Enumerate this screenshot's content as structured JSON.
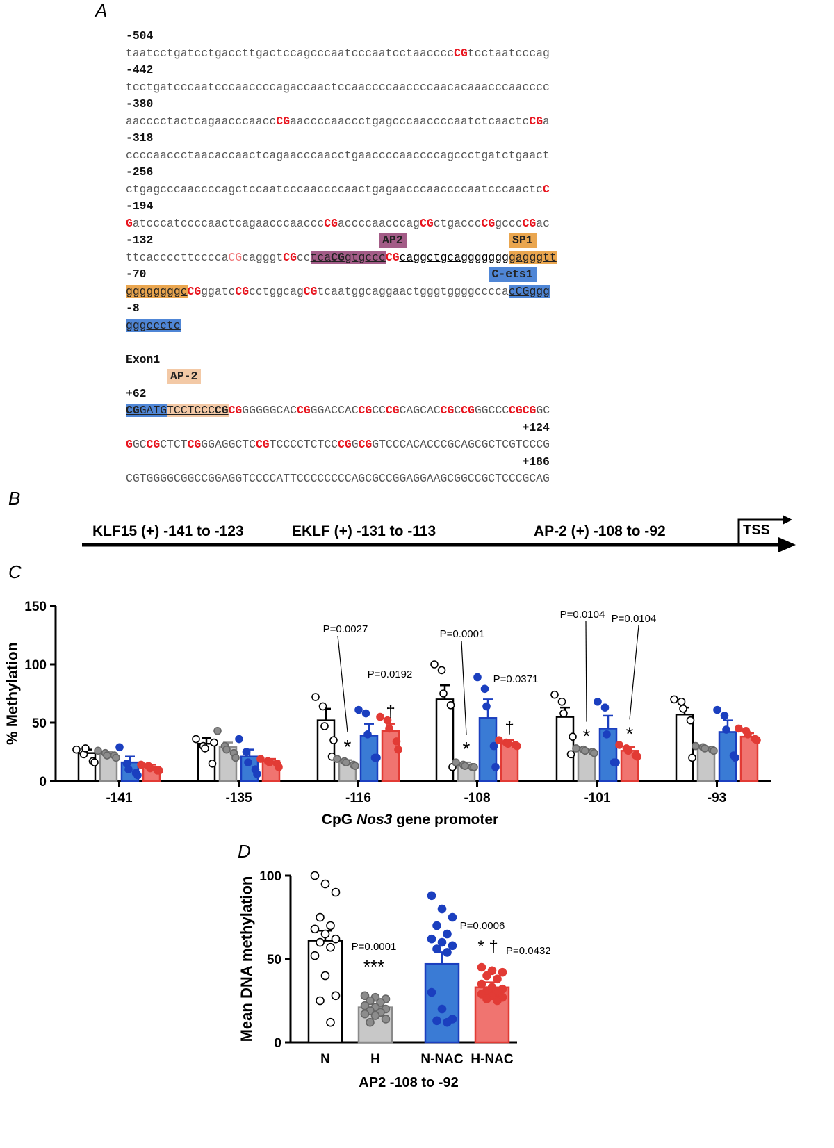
{
  "panels": {
    "a": "A",
    "b": "B",
    "c": "C",
    "d": "D"
  },
  "sequence": {
    "lines": [
      [
        {
          "t": "-504",
          "c": "pos"
        }
      ],
      [
        {
          "t": "taatcctgatcctgaccttgactccagcccaatcccaatcctaacccc"
        },
        {
          "t": "CG",
          "c": "cg"
        },
        {
          "t": "tcctaatcccag"
        }
      ],
      [
        {
          "t": "-442",
          "c": "pos"
        }
      ],
      [
        {
          "t": "tcctgatcccaatcccaaccccagaccaactccaaccccaaccccaacacaaacccaacccc"
        }
      ],
      [
        {
          "t": "-380",
          "c": "pos"
        }
      ],
      [
        {
          "t": "aacccctactcagaacccaacc"
        },
        {
          "t": "CG",
          "c": "cg"
        },
        {
          "t": "aaccccaaccctgagcccaaccccaatctcaactc"
        },
        {
          "t": "CG",
          "c": "cg"
        },
        {
          "t": "a"
        }
      ],
      [
        {
          "t": "-318",
          "c": "pos"
        }
      ],
      [
        {
          "t": "ccccaaccctaacaccaactcagaacccaacctgaaccccaaccccagccctgatctgaact"
        }
      ],
      [
        {
          "t": "-256",
          "c": "pos"
        }
      ],
      [
        {
          "t": "ctgagcccaaccccagctccaatcccaaccccaactgagaacccaaccccaatcccaactc"
        },
        {
          "t": "C",
          "c": "cg"
        }
      ],
      [
        {
          "t": "-194",
          "c": "pos"
        }
      ],
      [
        {
          "t": "G",
          "c": "cg"
        },
        {
          "t": "atcccatccccaactcagaacccaaccc"
        },
        {
          "t": "CG",
          "c": "cg"
        },
        {
          "t": "accccaacccag"
        },
        {
          "t": "CG",
          "c": "cg"
        },
        {
          "t": "ctgaccc"
        },
        {
          "t": "CG",
          "c": "cg"
        },
        {
          "t": "gccc"
        },
        {
          "t": "CG",
          "c": "cg"
        },
        {
          "t": "ac"
        }
      ],
      [
        {
          "t": "-132",
          "c": "pos"
        }
      ],
      [
        {
          "t": "ttcaccccttcccca"
        },
        {
          "t": "CG",
          "c": "cgl"
        },
        {
          "t": "caggg"
        },
        {
          "t": "t"
        },
        {
          "t": "CG",
          "c": "cg"
        },
        {
          "t": "cc"
        },
        {
          "t": "tca",
          "c": "box-ap2 u"
        },
        {
          "t": "CG",
          "c": "cg box-ap2 u"
        },
        {
          "t": "gtgccc",
          "c": "box-ap2 u"
        },
        {
          "t": "CG",
          "c": "cg"
        },
        {
          "t": "caggctgcaggggggg",
          "c": "u"
        },
        {
          "t": "gagggtt",
          "c": "box-sp1 u"
        }
      ],
      [
        {
          "t": "-70",
          "c": "pos"
        }
      ],
      [
        {
          "t": "ggggggggc",
          "c": "box-sp1 u"
        },
        {
          "t": "CG",
          "c": "cg"
        },
        {
          "t": "ggatc"
        },
        {
          "t": "CG",
          "c": "cg"
        },
        {
          "t": "cctggcag"
        },
        {
          "t": "CG",
          "c": "cg"
        },
        {
          "t": "tcaatggcaggaactgggtggggcccca"
        },
        {
          "t": "c",
          "c": "box-ets u"
        },
        {
          "t": "CG",
          "c": "cgl box-ets u"
        },
        {
          "t": "ggg",
          "c": "box-ets u"
        }
      ],
      [
        {
          "t": "-8",
          "c": "pos"
        }
      ],
      [
        {
          "t": "gggccctc",
          "c": "box-ets u"
        }
      ],
      [
        {
          "t": ""
        }
      ],
      [
        {
          "t": "Exon1",
          "c": "pos"
        }
      ],
      [
        {
          "t": ""
        }
      ],
      [
        {
          "t": "+62",
          "c": "pos"
        }
      ],
      [
        {
          "t": "CG",
          "c": "cg box-ets u"
        },
        {
          "t": "GATG",
          "c": "box-ets u"
        },
        {
          "t": "TCCTCCC",
          "c": "box-ap2b u"
        },
        {
          "t": "CG",
          "c": "cg box-ap2b u"
        },
        {
          "t": "CG",
          "c": "cg"
        },
        {
          "t": "GGGGGCAC"
        },
        {
          "t": "CG",
          "c": "cg"
        },
        {
          "t": "GGACCAC"
        },
        {
          "t": "CG",
          "c": "cg"
        },
        {
          "t": "CC"
        },
        {
          "t": "CG",
          "c": "cg"
        },
        {
          "t": "CAGCAC"
        },
        {
          "t": "CG",
          "c": "cg"
        },
        {
          "t": "C"
        },
        {
          "t": "CG",
          "c": "cg"
        },
        {
          "t": "GGCCC"
        },
        {
          "t": "CGCG",
          "c": "cg"
        },
        {
          "t": "GC"
        }
      ],
      [
        {
          "t": "                                                          +124",
          "c": "pos"
        }
      ],
      [
        {
          "t": "G",
          "c": "cg"
        },
        {
          "t": "GC"
        },
        {
          "t": "CG",
          "c": "cg"
        },
        {
          "t": "CTCT"
        },
        {
          "t": "CG",
          "c": "cg"
        },
        {
          "t": "GGAGGCTC"
        },
        {
          "t": "CG",
          "c": "cg"
        },
        {
          "t": "TCCCCTCTCC"
        },
        {
          "t": "CG",
          "c": "cg"
        },
        {
          "t": "G"
        },
        {
          "t": "CG",
          "c": "cg"
        },
        {
          "t": "GTCCCACACCCGCAGCGCTCGTCCCG"
        }
      ],
      [
        {
          "t": "                                                          +186",
          "c": "pos"
        }
      ],
      [
        {
          "t": "CGTGGGGCGGCCGGAGGTCCCCATTCCCCCCCCAGCGCCGGAGGAAGCGGCCGCTCCCGCAG"
        }
      ]
    ],
    "tags": [
      {
        "text": "AP2",
        "line": 13,
        "col": 37,
        "cls": "box-ap2"
      },
      {
        "text": "SP1",
        "line": 13,
        "col": 56,
        "cls": "box-sp1"
      },
      {
        "text": "C-ets1",
        "line": 15,
        "col": 53,
        "cls": "box-ets"
      },
      {
        "text": "AP-2",
        "line": 21,
        "col": 6,
        "cls": "box-ap2b"
      }
    ]
  },
  "panel_b": {
    "labels": [
      "KLF15 (+) -141 to -123",
      "EKLF (+) -131 to -113",
      "AP-2 (+) -108 to -92"
    ],
    "tss": "TSS"
  },
  "chart_data": [
    {
      "type": "bar",
      "ylabel": "% Methylation",
      "xlabel_pre": "CpG ",
      "xlabel_italic": "Nos3",
      "xlabel_post": " gene promoter",
      "ylim": [
        0,
        150
      ],
      "yticks": [
        0,
        50,
        100,
        150
      ],
      "categories": [
        "-141",
        "-135",
        "-116",
        "-108",
        "-101",
        "-93"
      ],
      "series": [
        {
          "key": "N",
          "color": "#ffffff",
          "dot": "#ffffff",
          "values": [
            24,
            32,
            52,
            70,
            55,
            57
          ],
          "sem": [
            3,
            5,
            10,
            12,
            8,
            6
          ],
          "points": [
            [
              27,
              23,
              28,
              17,
              16
            ],
            [
              36,
              30,
              28,
              15,
              33
            ],
            [
              72,
              64,
              47,
              21,
              35
            ],
            [
              100,
              95,
              75,
              65,
              12
            ],
            [
              74,
              68,
              58,
              23,
              38
            ],
            [
              70,
              68,
              62,
              52,
              20
            ]
          ]
        },
        {
          "key": "H",
          "color": "#c8c8c8",
          "dot": "#8c8c8c",
          "values": [
            23,
            29,
            16,
            14,
            26,
            28
          ],
          "sem": [
            2,
            4,
            2,
            2,
            1,
            1
          ],
          "points": [
            [
              26,
              24,
              22,
              22,
              20
            ],
            [
              43,
              30,
              27,
              24,
              20
            ],
            [
              19,
              17,
              16,
              14,
              13
            ],
            [
              16,
              14,
              13,
              12,
              12
            ],
            [
              28,
              27,
              26,
              25,
              24
            ],
            [
              30,
              29,
              28,
              27,
              26
            ]
          ]
        },
        {
          "key": "N-NAC",
          "color": "#3a7bd5",
          "dot": "#1b3fbf",
          "values": [
            16,
            21,
            39,
            54,
            45,
            42
          ],
          "sem": [
            5,
            6,
            10,
            16,
            11,
            10
          ],
          "points": [
            [
              29,
              15,
              10,
              7,
              5
            ],
            [
              36,
              25,
              16,
              10,
              6
            ],
            [
              61,
              58,
              40,
              20,
              20
            ],
            [
              89,
              79,
              64,
              30,
              12
            ],
            [
              68,
              63,
              40,
              16,
              16
            ],
            [
              61,
              56,
              44,
              22,
              20
            ]
          ]
        },
        {
          "key": "H-NAC",
          "color": "#f07470",
          "dot": "#e23b35",
          "values": [
            12,
            17,
            43,
            32,
            26,
            38
          ],
          "sem": [
            2,
            2,
            6,
            3,
            3,
            3
          ],
          "points": [
            [
              14,
              13,
              11,
              9,
              9
            ],
            [
              19,
              17,
              16,
              15,
              12
            ],
            [
              55,
              52,
              45,
              34,
              27
            ],
            [
              35,
              33,
              32,
              31,
              30
            ],
            [
              31,
              28,
              26,
              22,
              21
            ],
            [
              45,
              43,
              40,
              36,
              35
            ]
          ]
        }
      ],
      "markers": [
        {
          "cat": 2,
          "series": 1,
          "text": "*"
        },
        {
          "cat": 2,
          "series": 3,
          "text": "†"
        },
        {
          "cat": 3,
          "series": 1,
          "text": "*"
        },
        {
          "cat": 3,
          "series": 3,
          "text": "†"
        },
        {
          "cat": 4,
          "series": 1,
          "text": "*"
        },
        {
          "cat": 4,
          "series": 3,
          "text": "*"
        }
      ],
      "pvalues": [
        {
          "text": "P=0.0027",
          "cat": 2,
          "series": 1,
          "leader": true
        },
        {
          "text": "P=0.0192",
          "cat": 2,
          "series": 3,
          "leader": false
        },
        {
          "text": "P=0.0001",
          "cat": 3,
          "series": 1,
          "leader": true
        },
        {
          "text": "P=0.0371",
          "cat": 3,
          "series": 3,
          "leader": false
        },
        {
          "text": "P=0.0104",
          "cat": 4,
          "series": 1,
          "leader": true
        },
        {
          "text": "P=0.0104",
          "cat": 4,
          "series": 3,
          "leader": true
        }
      ]
    },
    {
      "type": "bar",
      "ylabel": "Mean DNA methylation",
      "xlabel": "AP2 -108 to -92",
      "ylim": [
        0,
        100
      ],
      "yticks": [
        0,
        50,
        100
      ],
      "categories": [
        "N",
        "H",
        "N-NAC",
        "H-NAC"
      ],
      "colors": [
        "#ffffff",
        "#c8c8c8",
        "#3a7bd5",
        "#f07470"
      ],
      "dots": [
        "#ffffff",
        "#8c8c8c",
        "#1b3fbf",
        "#e23b35"
      ],
      "values": [
        61,
        21,
        47,
        33
      ],
      "sem": [
        6,
        2,
        7,
        3
      ],
      "points": [
        [
          100,
          95,
          90,
          75,
          70,
          68,
          65,
          62,
          60,
          57,
          52,
          40,
          28,
          25,
          12
        ],
        [
          28,
          27,
          26,
          25,
          24,
          22,
          21,
          20,
          19,
          18,
          17,
          16,
          14,
          12
        ],
        [
          88,
          80,
          75,
          70,
          65,
          62,
          60,
          58,
          56,
          54,
          30,
          20,
          14,
          13,
          12
        ],
        [
          45,
          43,
          42,
          40,
          38,
          35,
          33,
          32,
          31,
          30,
          29,
          28,
          27,
          26,
          25
        ]
      ],
      "annotations": [
        {
          "text": "P=0.0001",
          "bar": 1,
          "kind": "p"
        },
        {
          "text": "***",
          "bar": 1,
          "kind": "sig"
        },
        {
          "text": "P=0.0006",
          "bar": 3,
          "kind": "p_high"
        },
        {
          "text": "* †",
          "bar": 3,
          "kind": "sig"
        },
        {
          "text": "P=0.0432",
          "bar": 3,
          "kind": "p_right"
        }
      ]
    }
  ]
}
